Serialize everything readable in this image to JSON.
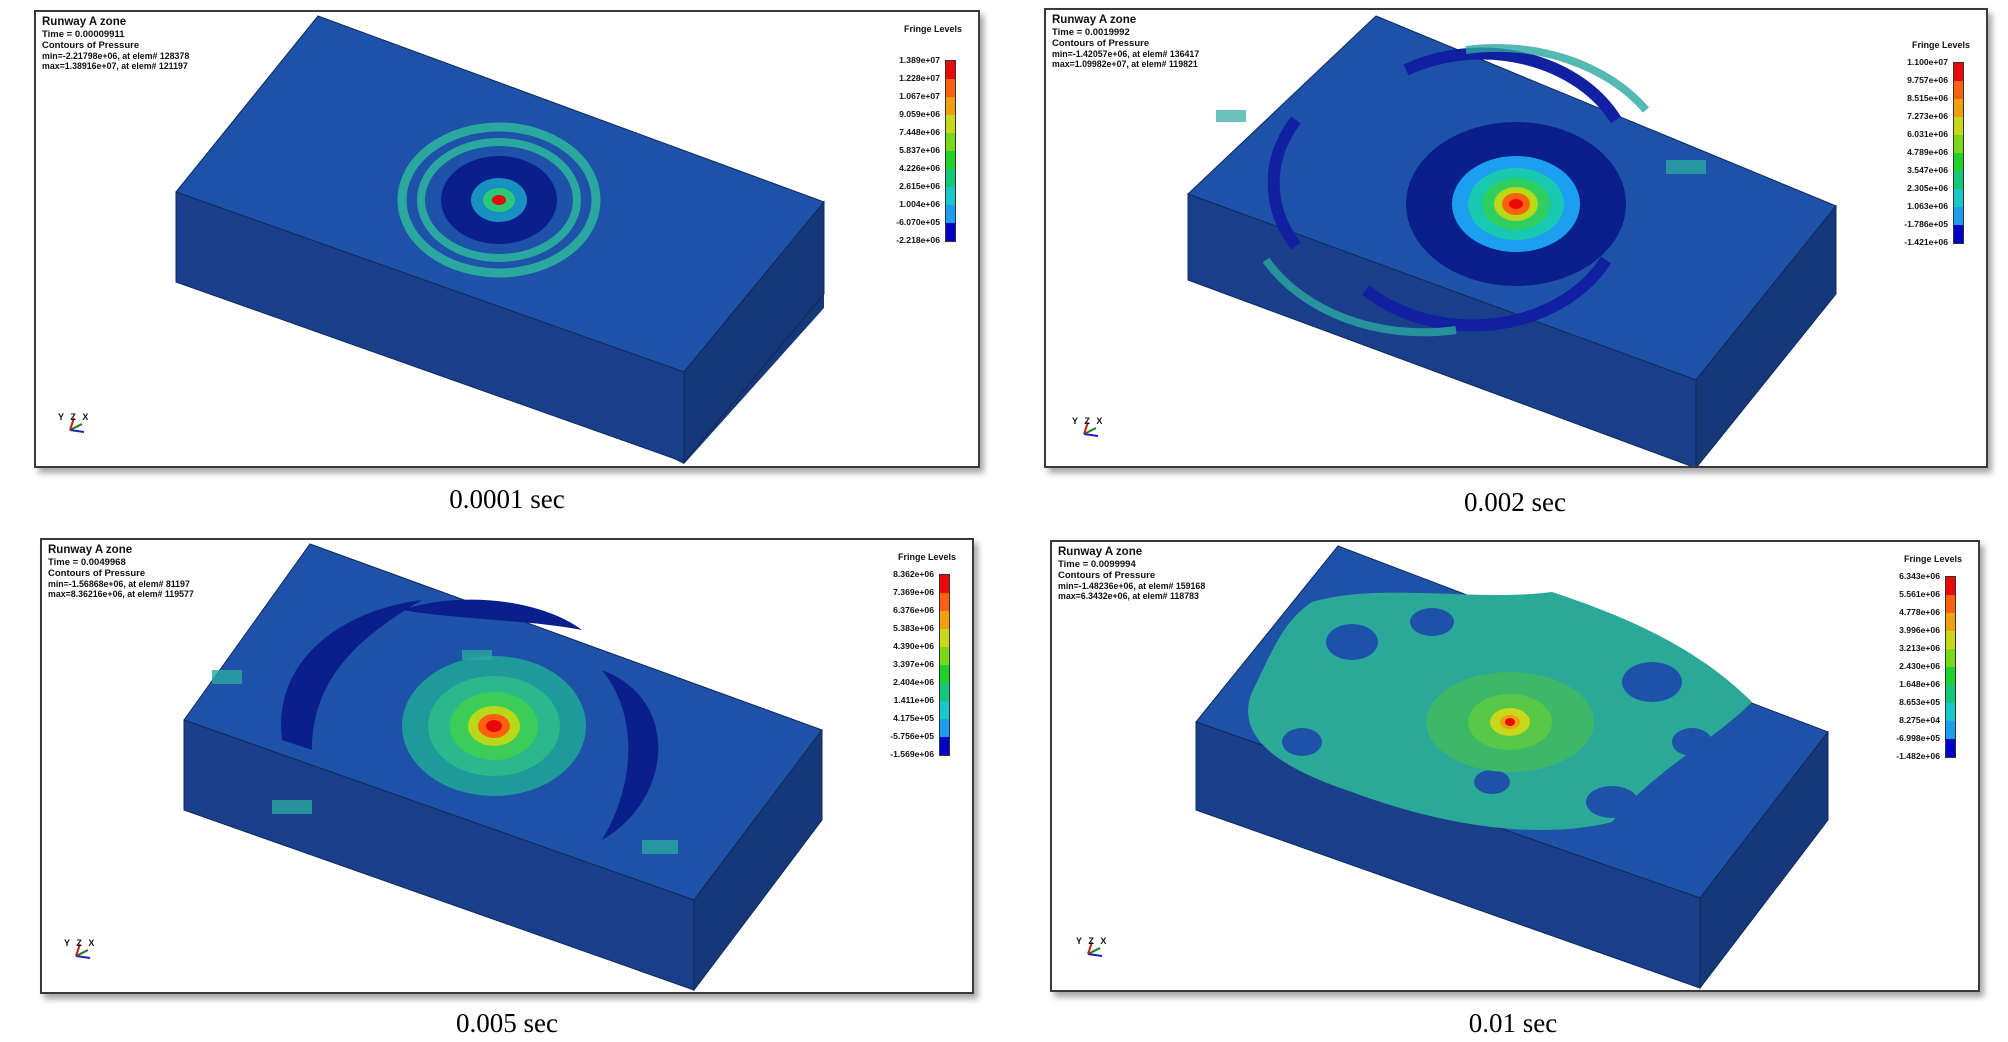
{
  "colors": {
    "fringe_scale": [
      "#0000c8",
      "#1a3fff",
      "#1c9ff0",
      "#18c8c8",
      "#14c87a",
      "#1ed22a",
      "#78d81a",
      "#c8d81a",
      "#f0a010",
      "#ff6010",
      "#e80a0a"
    ],
    "plate_top": "#1e52a8",
    "plate_side": "#1a3f8a",
    "plate_side_dark": "#173878"
  },
  "panels": [
    {
      "id": "p1",
      "title": "Runway A zone",
      "time": "Time =  0.00009911",
      "contours": "Contours of Pressure",
      "min_line": "min=-2.21798e+06, at elem# 128378",
      "max_line": "max=1.38916e+07, at elem# 121197",
      "legend_title": "Fringe Levels",
      "levels": [
        "1.389e+07",
        "1.228e+07",
        "1.067e+07",
        "9.059e+06",
        "7.448e+06",
        "5.837e+06",
        "4.226e+06",
        "2.615e+06",
        "1.004e+06",
        "-6.070e+05",
        "-2.218e+06"
      ],
      "triad": "Y Z X",
      "caption": "0.0001 sec"
    },
    {
      "id": "p2",
      "title": "Runway A zone",
      "time": "Time =  0.0019992",
      "contours": "Contours of Pressure",
      "min_line": "min=-1.42057e+06, at elem# 136417",
      "max_line": "max=1.09982e+07, at elem# 119821",
      "legend_title": "Fringe Levels",
      "levels": [
        "1.100e+07",
        "9.757e+06",
        "8.515e+06",
        "7.273e+06",
        "6.031e+06",
        "4.789e+06",
        "3.547e+06",
        "2.305e+06",
        "1.063e+06",
        "-1.786e+05",
        "-1.421e+06"
      ],
      "triad": "Y Z X",
      "caption": "0.002 sec"
    },
    {
      "id": "p3",
      "title": "Runway A zone",
      "time": "Time =  0.0049968",
      "contours": "Contours of Pressure",
      "min_line": "min=-1.56868e+06, at elem# 81197",
      "max_line": "max=8.36216e+06, at elem# 119577",
      "legend_title": "Fringe Levels",
      "levels": [
        "8.362e+06",
        "7.369e+06",
        "6.376e+06",
        "5.383e+06",
        "4.390e+06",
        "3.397e+06",
        "2.404e+06",
        "1.411e+06",
        "4.175e+05",
        "-5.756e+05",
        "-1.569e+06"
      ],
      "triad": "Y Z X",
      "caption": "0.005 sec"
    },
    {
      "id": "p4",
      "title": "Runway A zone",
      "time": "Time =  0.0099994",
      "contours": "Contours of Pressure",
      "min_line": "min=-1.48236e+06, at elem# 159168",
      "max_line": "max=6.3432e+06, at elem# 118783",
      "legend_title": "Fringe Levels",
      "levels": [
        "6.343e+06",
        "5.561e+06",
        "4.778e+06",
        "3.996e+06",
        "3.213e+06",
        "2.430e+06",
        "1.648e+06",
        "8.653e+05",
        "8.275e+04",
        "-6.998e+05",
        "-1.482e+06"
      ],
      "triad": "Y Z X",
      "caption": "0.01 sec"
    }
  ]
}
